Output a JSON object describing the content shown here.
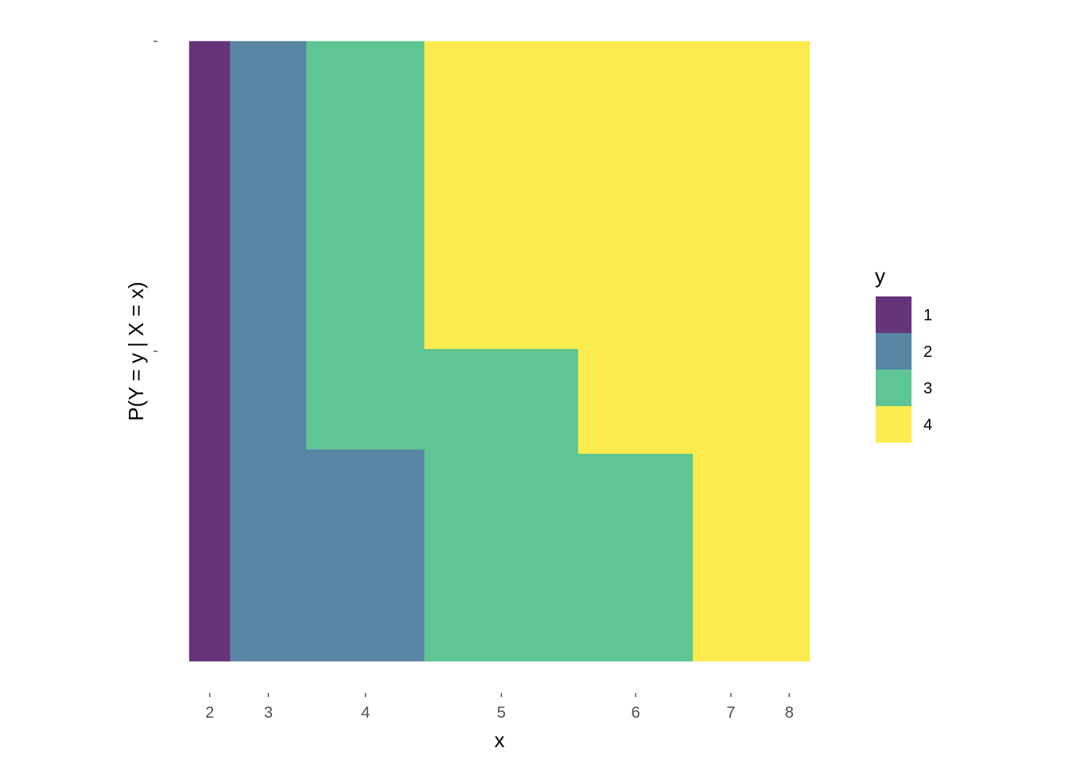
{
  "chart_data": {
    "type": "mosaic",
    "xlabel": "x",
    "ylabel": "P(Y = y | X = x)",
    "x_categories": [
      "2",
      "3",
      "4",
      "5",
      "6",
      "7",
      "8"
    ],
    "x_widths": [
      0.066,
      0.123,
      0.19,
      0.248,
      0.185,
      0.122,
      0.066
    ],
    "legend": {
      "title": "y",
      "entries": [
        {
          "label": "1",
          "color": "#67337A"
        },
        {
          "label": "2",
          "color": "#5986A5"
        },
        {
          "label": "3",
          "color": "#5EC594"
        },
        {
          "label": "4",
          "color": "#FCEB4E"
        }
      ]
    },
    "conditional_proportions": [
      {
        "x": "2",
        "y1": 1.0,
        "y2": 0.0,
        "y3": 0.0,
        "y4": 0.0
      },
      {
        "x": "3",
        "y1": 0.0,
        "y2": 1.0,
        "y3": 0.0,
        "y4": 0.0
      },
      {
        "x": "4",
        "y1": 0.0,
        "y2": 0.342,
        "y3": 0.658,
        "y4": 0.0
      },
      {
        "x": "5",
        "y1": 0.0,
        "y2": 0.0,
        "y3": 0.504,
        "y4": 0.496
      },
      {
        "x": "6",
        "y1": 0.0,
        "y2": 0.0,
        "y3": 0.335,
        "y4": 0.665
      },
      {
        "x": "7",
        "y1": 0.0,
        "y2": 0.0,
        "y3": 0.0,
        "y4": 1.0
      },
      {
        "x": "8",
        "y1": 0.0,
        "y2": 0.0,
        "y3": 0.0,
        "y4": 1.0
      }
    ]
  }
}
